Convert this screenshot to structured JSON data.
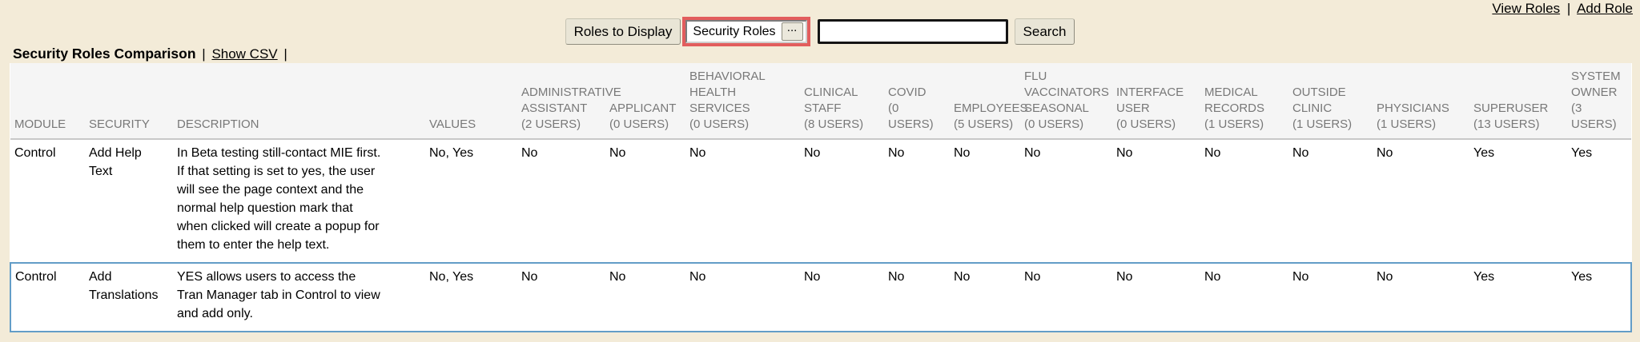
{
  "header_links": {
    "view_roles": "View Roles",
    "separator": "|",
    "add_role": "Add Role"
  },
  "controls": {
    "roles_to_display_label": "Roles to Display",
    "roles_dropdown_value": "Security Roles",
    "ellipsis_label": "...",
    "search_value": "",
    "search_button_label": "Search"
  },
  "title_bar": {
    "title": "Security Roles Comparison",
    "separator": "|",
    "show_csv_label": "Show CSV",
    "trailing_separator": "|"
  },
  "table": {
    "columns": [
      {
        "id": "module",
        "label": "MODULE"
      },
      {
        "id": "security",
        "label": "SECURITY"
      },
      {
        "id": "description",
        "label": "DESCRIPTION"
      },
      {
        "id": "values",
        "label": "VALUES"
      },
      {
        "id": "administrative-assistant",
        "label": "ADMINISTRATIVE\nASSISTANT\n(2 USERS)"
      },
      {
        "id": "applicant",
        "label": "APPLICANT\n(0 USERS)"
      },
      {
        "id": "behavioral-health-services",
        "label": "BEHAVIORAL\nHEALTH\nSERVICES\n(0 USERS)"
      },
      {
        "id": "clinical-staff",
        "label": "CLINICAL\nSTAFF\n(8 USERS)"
      },
      {
        "id": "covid",
        "label": "COVID\n(0\nUSERS)"
      },
      {
        "id": "employees",
        "label": "EMPLOYEES\n(5 USERS)"
      },
      {
        "id": "flu-vaccinators-seasonal",
        "label": "FLU\nVACCINATORS\nSEASONAL\n(0 USERS)"
      },
      {
        "id": "interface-user",
        "label": "INTERFACE\nUSER\n(0 USERS)"
      },
      {
        "id": "medical-records",
        "label": "MEDICAL\nRECORDS\n(1 USERS)"
      },
      {
        "id": "outside-clinic",
        "label": "OUTSIDE\nCLINIC\n(1 USERS)"
      },
      {
        "id": "physicians",
        "label": "PHYSICIANS\n(1 USERS)"
      },
      {
        "id": "superuser",
        "label": "SUPERUSER\n(13 USERS)"
      },
      {
        "id": "system-owner",
        "label": "SYSTEM\nOWNER\n(3 USERS)"
      }
    ],
    "rows": [
      {
        "module": "Control",
        "security": "Add Help Text",
        "description": "In Beta testing still-contact MIE first. If that setting is set to yes, the user will see the page context and the normal help question mark that when clicked will create a popup for them to enter the help text.",
        "values": "No, Yes",
        "role_values": [
          "No",
          "No",
          "No",
          "No",
          "No",
          "No",
          "No",
          "No",
          "No",
          "No",
          "No",
          "Yes",
          "Yes"
        ],
        "highlighted": false
      },
      {
        "module": "Control",
        "security": "Add Translations",
        "description": "YES allows users to access the Tran Manager tab in Control to view and add only.",
        "values": "No, Yes",
        "role_values": [
          "No",
          "No",
          "No",
          "No",
          "No",
          "No",
          "No",
          "No",
          "No",
          "No",
          "No",
          "Yes",
          "Yes"
        ],
        "highlighted": true
      }
    ]
  },
  "colors": {
    "page_background": "#f3ebd8",
    "table_header_background": "#f5f5f5",
    "table_header_text": "#787878",
    "highlight_row_background": "#f0f8fd",
    "highlight_row_border": "#639dc7",
    "attention_border": "#e25d5d",
    "button_background": "#e9e5d6"
  }
}
